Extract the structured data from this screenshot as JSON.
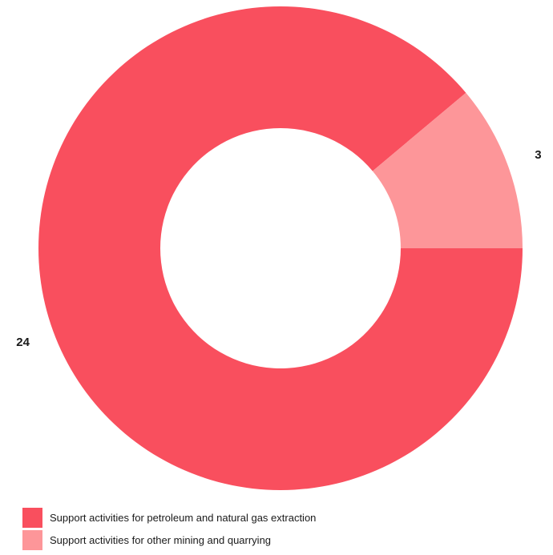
{
  "colors": {
    "primary": "#f94f5e",
    "secondary": "#fd9699"
  },
  "chart_data": {
    "type": "pie",
    "subtype": "donut",
    "title": "",
    "categories": [
      "Support activities for petroleum and natural gas extraction",
      "Support activities for other mining and quarrying"
    ],
    "values": [
      24,
      3
    ],
    "colors": [
      "#f94f5e",
      "#fd9699"
    ],
    "data_labels": [
      "24",
      "3"
    ],
    "legend": "bottom-left"
  },
  "legend": {
    "items": [
      {
        "label": "Support activities for petroleum and natural gas extraction",
        "color": "#f94f5e"
      },
      {
        "label": "Support activities for other mining and quarrying",
        "color": "#fd9699"
      }
    ]
  }
}
